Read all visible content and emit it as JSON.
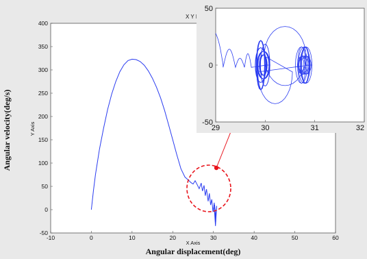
{
  "colors": {
    "line": "#2a3cf0",
    "annotation": "#e8121a",
    "plot_bg": "#ffffff",
    "figure_bg": "#e9e9e9"
  },
  "chart_data": [
    {
      "type": "line",
      "title": "X Y Pl",
      "xlabel": "X Axis",
      "ylabel": "Y Axis",
      "outer_xlabel": "Angular  displacement(deg)",
      "outer_ylabel": "Angular  velocity(deg/s)",
      "xlim": [
        -10,
        60
      ],
      "ylim": [
        -50,
        400
      ],
      "xticks": [
        "-10",
        "0",
        "10",
        "20",
        "30",
        "40",
        "50",
        "60"
      ],
      "yticks": [
        "400",
        "350",
        "300",
        "250",
        "200",
        "150",
        "100",
        "50",
        "0",
        "-50"
      ],
      "grid": false,
      "series": [
        {
          "x": [
            0,
            0.5,
            1,
            2,
            3,
            4,
            5,
            6,
            7,
            8,
            9,
            10,
            11,
            12,
            13,
            14,
            15,
            16,
            17,
            18,
            19,
            20,
            21,
            22,
            23,
            24,
            24.5,
            25,
            25.5,
            26,
            26.5,
            27,
            27.3,
            27.7,
            28,
            28.3,
            28.7,
            29,
            29.3,
            29.6,
            29.9,
            30.2,
            30.5,
            30.8,
            30.5,
            30.2,
            30.6,
            30.3
          ],
          "y": [
            0,
            40,
            75,
            130,
            175,
            215,
            248,
            275,
            296,
            311,
            320,
            323,
            322,
            318,
            310,
            298,
            282,
            263,
            240,
            213,
            182,
            150,
            118,
            88,
            70,
            62,
            58,
            55,
            62,
            54,
            45,
            57,
            40,
            52,
            30,
            44,
            18,
            35,
            10,
            22,
            -5,
            15,
            -20,
            8,
            -35,
            5,
            -25,
            10
          ]
        }
      ]
    },
    {
      "type": "line",
      "title": "",
      "xlim": [
        29,
        32
      ],
      "ylim": [
        -50,
        50
      ],
      "xticks": [
        "29",
        "30",
        "31",
        "32"
      ],
      "yticks": [
        "50",
        "0",
        "-50"
      ],
      "grid": false,
      "note": "zoomed view of the circled region"
    }
  ]
}
